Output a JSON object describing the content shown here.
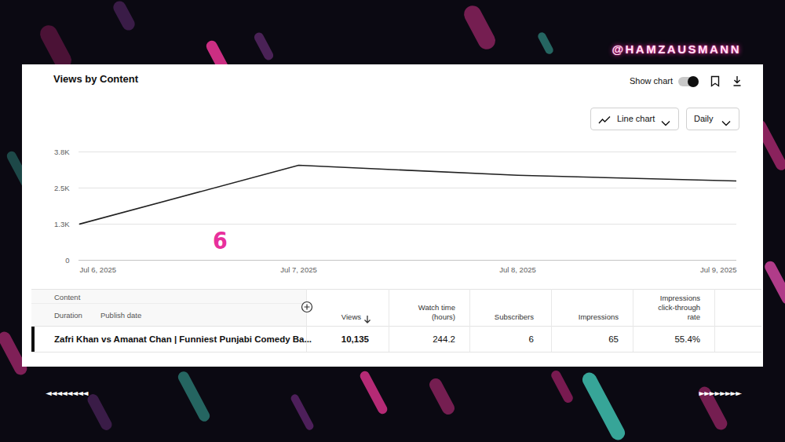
{
  "chart_data": {
    "type": "line",
    "title": "Views by Content",
    "x": [
      "Jul 6, 2025",
      "Jul 7, 2025",
      "Jul 8, 2025",
      "Jul 9, 2025"
    ],
    "values": [
      1270,
      3330,
      2980,
      2780
    ],
    "color": "#212121",
    "ylim": [
      0,
      3800
    ],
    "yticks": [
      0,
      {
        "value": 1267,
        "label": "1.3K"
      },
      {
        "value": 2533,
        "label": "2.5K"
      },
      {
        "value": 3800,
        "label": "3.8K"
      }
    ],
    "grid": true
  },
  "header": {
    "handle": "@HAMZAUSMANN"
  },
  "controls": {
    "show_chart": "Show chart",
    "chart_type": "Line chart",
    "interval": "Daily"
  },
  "overlay_text": "6",
  "table": {
    "columns_left": [
      "Content",
      "Duration",
      "Publish date"
    ],
    "columns": [
      "Views",
      "Watch time (hours)",
      "Subscribers",
      "Impressions",
      "Impressions click-through rate"
    ],
    "rows": [
      {
        "content": "Zafri Khan vs Amanat Chan | Funniest Punjabi Comedy Ba...",
        "values": [
          "10,135",
          "244.2",
          "6",
          "65",
          "55.4%"
        ]
      }
    ]
  },
  "nav": {
    "left": "◄◄◄◄◄◄◄◄",
    "right": "►►►►►►►►"
  }
}
